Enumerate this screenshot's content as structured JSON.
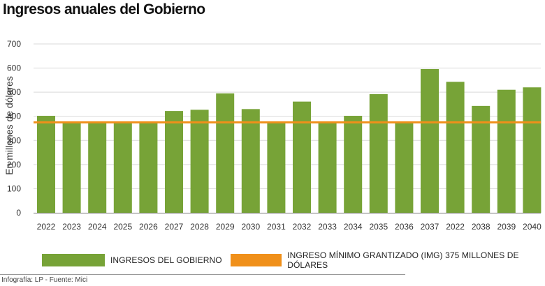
{
  "chart_data": {
    "type": "bar",
    "title": "Ingresos anuales del Gobierno",
    "ylabel": "En millones de dólares",
    "xlabel": "",
    "ylim": [
      0,
      700
    ],
    "yticks": [
      0,
      100,
      200,
      300,
      400,
      500,
      600,
      700
    ],
    "grid": true,
    "categories": [
      "2022",
      "2023",
      "2024",
      "2025",
      "2026",
      "2027",
      "2028",
      "2029",
      "2030",
      "2031",
      "2032",
      "2033",
      "2034",
      "2035",
      "2036",
      "2037",
      "2022",
      "2038",
      "2039",
      "2040"
    ],
    "series": [
      {
        "name": "INGRESOS DEL GOBIERNO",
        "type": "bar",
        "values": [
          402,
          375,
          375,
          375,
          375,
          422,
          427,
          495,
          430,
          375,
          461,
          375,
          402,
          492,
          375,
          596,
          543,
          443,
          510,
          520
        ]
      },
      {
        "name": "INGRESO MÍNIMO GRANTIZADO  (IMG) 375 MILLONES DE DÓLARES",
        "type": "hline",
        "value": 375
      }
    ],
    "colors": {
      "bar": "#77a337",
      "line": "#f0901a",
      "grid": "#d9d9d9",
      "axis": "#777777"
    }
  },
  "legend": {
    "bars_label": "INGRESOS DEL GOBIERNO",
    "line_label": "INGRESO MÍNIMO GRANTIZADO  (IMG) 375 MILLONES DE DÓLARES"
  },
  "source": "Infografía: LP - Fuente: Mici"
}
